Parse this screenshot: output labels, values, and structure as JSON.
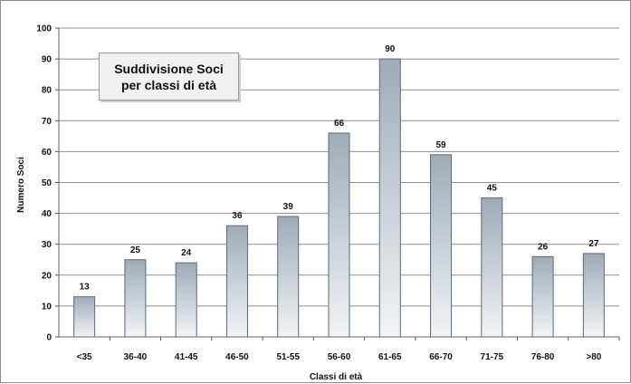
{
  "chart_data": {
    "type": "bar",
    "title_lines": [
      "Suddivisione Soci",
      "per classi di età"
    ],
    "xlabel": "Classi di età",
    "ylabel": "Numero Soci",
    "categories": [
      "<35",
      "36-40",
      "41-45",
      "46-50",
      "51-55",
      "56-60",
      "61-65",
      "66-70",
      "71-75",
      "76-80",
      ">80"
    ],
    "values": [
      13,
      25,
      24,
      36,
      39,
      66,
      90,
      59,
      45,
      26,
      27
    ],
    "ylim": [
      0,
      100
    ],
    "yticks": [
      0,
      10,
      20,
      30,
      40,
      50,
      60,
      70,
      80,
      90,
      100
    ],
    "grid": true,
    "legend": "none",
    "colors": {
      "bar_top": "#9fabb8",
      "bar_bottom": "#f2f4f6",
      "bar_border": "#5a6a7a",
      "grid": "#8f8f8f"
    }
  }
}
